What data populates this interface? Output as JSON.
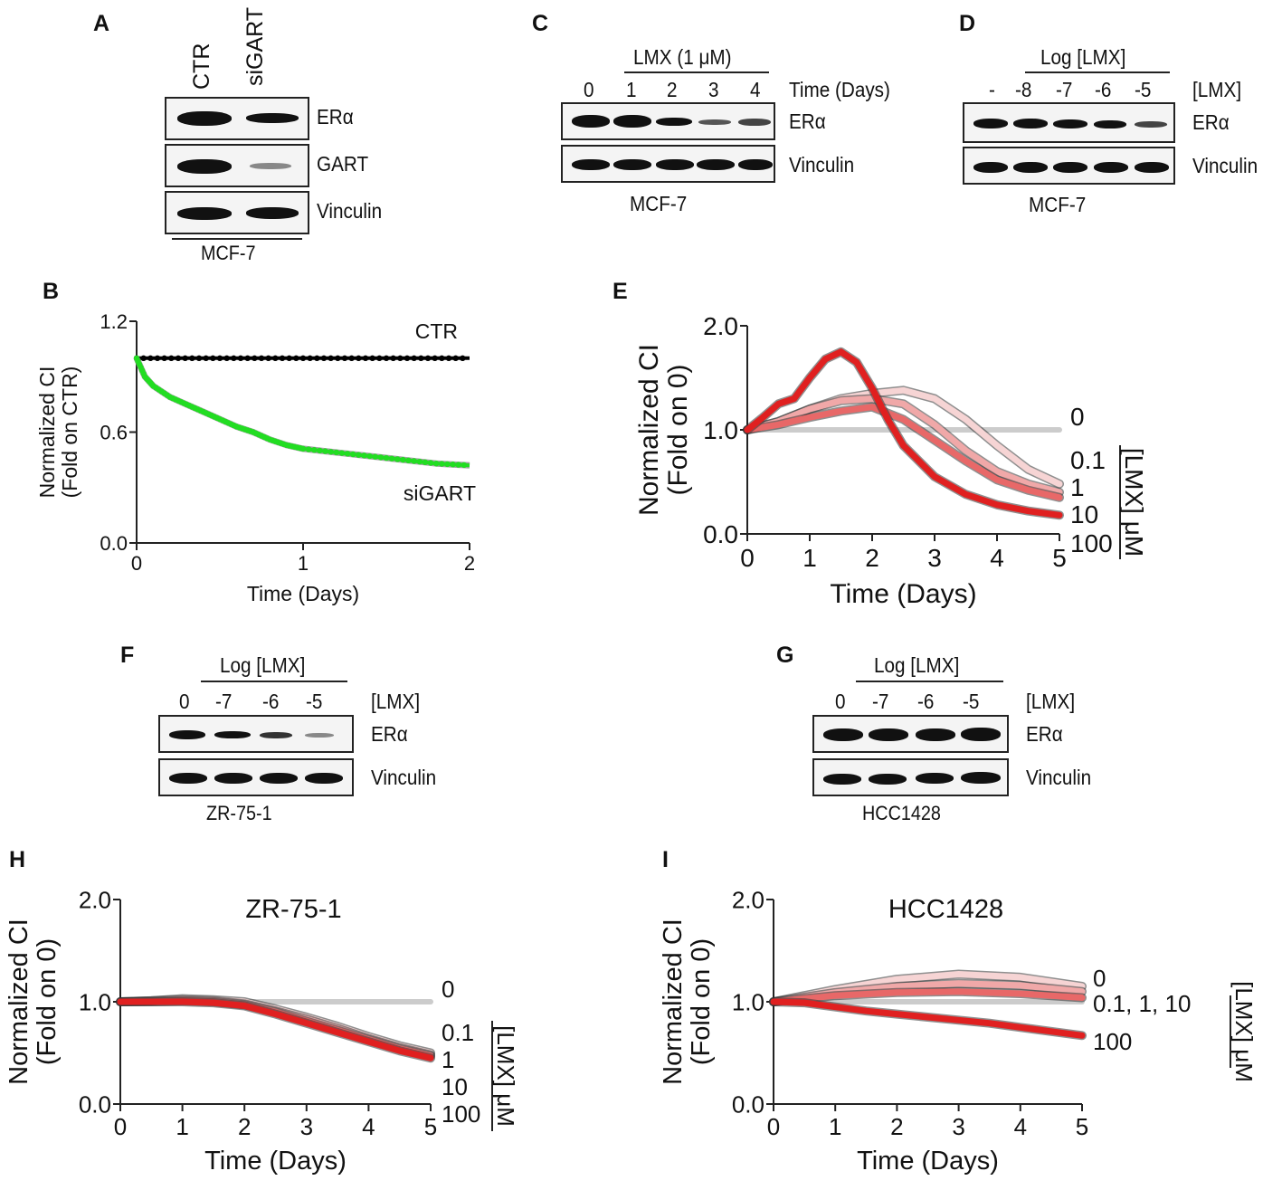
{
  "panels": {
    "A": {
      "label": "A",
      "lanes": [
        "CTR",
        "siGART"
      ],
      "rows": [
        "ERα",
        "GART",
        "Vinculin"
      ],
      "cell": "MCF-7"
    },
    "B": {
      "label": "B"
    },
    "C": {
      "label": "C",
      "treatment": "LMX (1 μM)",
      "lanes": [
        "0",
        "1",
        "2",
        "3",
        "4"
      ],
      "axis": "Time (Days)",
      "rows": [
        "ERα",
        "Vinculin"
      ],
      "cell": "MCF-7"
    },
    "D": {
      "label": "D",
      "treatment": "Log [LMX]",
      "lanes": [
        "-",
        "-8",
        "-7",
        "-6",
        "-5"
      ],
      "axis": "[LMX]",
      "rows": [
        "ERα",
        "Vinculin"
      ],
      "cell": "MCF-7"
    },
    "E": {
      "label": "E"
    },
    "F": {
      "label": "F",
      "treatment": "Log [LMX]",
      "lanes": [
        "0",
        "-7",
        "-6",
        "-5"
      ],
      "axis": "[LMX]",
      "rows": [
        "ERα",
        "Vinculin"
      ],
      "cell": "ZR-75-1"
    },
    "G": {
      "label": "G",
      "treatment": "Log [LMX]",
      "lanes": [
        "0",
        "-7",
        "-6",
        "-5"
      ],
      "axis": "[LMX]",
      "rows": [
        "ERα",
        "Vinculin"
      ],
      "cell": "HCC1428"
    },
    "H": {
      "label": "H"
    },
    "I": {
      "label": "I"
    }
  },
  "chart_data": [
    {
      "id": "B",
      "type": "line",
      "title": "",
      "xlabel": "Time (Days)",
      "ylabel_line1": "Normalized CI",
      "ylabel_line2": "(Fold on CTR)",
      "xlim": [
        0,
        2
      ],
      "ylim": [
        0,
        1.2
      ],
      "xticks": [
        "0",
        "1",
        "2"
      ],
      "yticks": [
        "0.0",
        "0.6",
        "1.2"
      ],
      "series": [
        {
          "name": "CTR",
          "color": "#000000",
          "x": [
            0,
            0.25,
            0.5,
            0.75,
            1,
            1.25,
            1.5,
            1.75,
            2
          ],
          "y": [
            1.0,
            1.0,
            1.0,
            1.0,
            1.0,
            1.0,
            1.0,
            1.0,
            1.0
          ]
        },
        {
          "name": "siGART",
          "color": "#22dd22",
          "x": [
            0,
            0.05,
            0.1,
            0.2,
            0.3,
            0.4,
            0.5,
            0.6,
            0.7,
            0.8,
            0.9,
            1.0,
            1.2,
            1.4,
            1.6,
            1.8,
            2.0
          ],
          "y": [
            1.0,
            0.9,
            0.85,
            0.79,
            0.75,
            0.71,
            0.67,
            0.63,
            0.6,
            0.56,
            0.53,
            0.51,
            0.49,
            0.47,
            0.45,
            0.43,
            0.42
          ]
        }
      ],
      "annotations": [
        "CTR",
        "siGART"
      ]
    },
    {
      "id": "E",
      "type": "line",
      "title": "",
      "xlabel": "Time (Days)",
      "ylabel_line1": "Normalized CI",
      "ylabel_line2": "(Fold on 0)",
      "xlim": [
        0,
        5
      ],
      "ylim": [
        0,
        2.0
      ],
      "xticks": [
        "0",
        "1",
        "2",
        "3",
        "4",
        "5"
      ],
      "yticks": [
        "0.0",
        "1.0",
        "2.0"
      ],
      "legend_title": "[LMX] μM",
      "legend": [
        "0",
        "0.1",
        "1",
        "10",
        "100"
      ],
      "series": [
        {
          "name": "0",
          "color": "#cccccc",
          "x": [
            0,
            1,
            2,
            3,
            4,
            5
          ],
          "y": [
            1.0,
            1.0,
            1.0,
            1.0,
            1.0,
            1.0
          ]
        },
        {
          "name": "0.1",
          "color": "#f6d4d4",
          "x": [
            0,
            0.5,
            1,
            1.5,
            2,
            2.5,
            3,
            3.5,
            4,
            4.5,
            5
          ],
          "y": [
            1.0,
            1.08,
            1.2,
            1.3,
            1.35,
            1.38,
            1.3,
            1.1,
            0.85,
            0.62,
            0.48
          ]
        },
        {
          "name": "1",
          "color": "#f0a8a8",
          "x": [
            0,
            0.5,
            1,
            1.5,
            2,
            2.5,
            3,
            3.5,
            4,
            4.5,
            5
          ],
          "y": [
            1.0,
            1.08,
            1.2,
            1.28,
            1.3,
            1.25,
            1.05,
            0.8,
            0.6,
            0.48,
            0.4
          ]
        },
        {
          "name": "10",
          "color": "#e86868",
          "x": [
            0,
            0.5,
            1,
            1.5,
            2,
            2.5,
            3,
            3.5,
            4,
            4.5,
            5
          ],
          "y": [
            1.0,
            1.05,
            1.12,
            1.18,
            1.22,
            1.1,
            0.9,
            0.7,
            0.52,
            0.42,
            0.35
          ]
        },
        {
          "name": "100",
          "color": "#e02020",
          "x": [
            0,
            0.25,
            0.5,
            0.75,
            1,
            1.25,
            1.5,
            1.75,
            2,
            2.25,
            2.5,
            3,
            3.5,
            4,
            4.5,
            5
          ],
          "y": [
            1.0,
            1.12,
            1.25,
            1.3,
            1.5,
            1.68,
            1.75,
            1.65,
            1.4,
            1.1,
            0.85,
            0.55,
            0.38,
            0.28,
            0.22,
            0.18
          ]
        }
      ]
    },
    {
      "id": "H",
      "type": "line",
      "title": "ZR-75-1",
      "xlabel": "Time (Days)",
      "ylabel_line1": "Normalized CI",
      "ylabel_line2": "(Fold on 0)",
      "xlim": [
        0,
        5
      ],
      "ylim": [
        0,
        2.0
      ],
      "xticks": [
        "0",
        "1",
        "2",
        "3",
        "4",
        "5"
      ],
      "yticks": [
        "0.0",
        "1.0",
        "2.0"
      ],
      "legend_title": "[LMX] μM",
      "legend": [
        "0",
        "0.1",
        "1",
        "10",
        "100"
      ],
      "series": [
        {
          "name": "0",
          "color": "#cccccc",
          "x": [
            0,
            1,
            2,
            3,
            4,
            5
          ],
          "y": [
            1.0,
            1.0,
            1.0,
            1.0,
            1.0,
            1.0
          ]
        },
        {
          "name": "0.1",
          "color": "#f6d4d4",
          "x": [
            0,
            0.5,
            1,
            1.5,
            2,
            2.5,
            3,
            3.5,
            4,
            4.5,
            5
          ],
          "y": [
            1.0,
            1.01,
            1.03,
            1.02,
            1.0,
            0.93,
            0.85,
            0.76,
            0.66,
            0.57,
            0.5
          ]
        },
        {
          "name": "1",
          "color": "#f0a8a8",
          "x": [
            0,
            0.5,
            1,
            1.5,
            2,
            2.5,
            3,
            3.5,
            4,
            4.5,
            5
          ],
          "y": [
            1.0,
            1.01,
            1.02,
            1.01,
            0.98,
            0.91,
            0.83,
            0.74,
            0.64,
            0.55,
            0.48
          ]
        },
        {
          "name": "10",
          "color": "#e86868",
          "x": [
            0,
            0.5,
            1,
            1.5,
            2,
            2.5,
            3,
            3.5,
            4,
            4.5,
            5
          ],
          "y": [
            1.0,
            1.0,
            1.01,
            1.0,
            0.97,
            0.9,
            0.81,
            0.72,
            0.63,
            0.54,
            0.47
          ]
        },
        {
          "name": "100",
          "color": "#e02020",
          "x": [
            0,
            0.5,
            1,
            1.5,
            2,
            2.5,
            3,
            3.5,
            4,
            4.5,
            5
          ],
          "y": [
            1.0,
            1.0,
            1.0,
            0.99,
            0.96,
            0.88,
            0.79,
            0.7,
            0.61,
            0.52,
            0.45
          ]
        }
      ]
    },
    {
      "id": "I",
      "type": "line",
      "title": "HCC1428",
      "xlabel": "Time (Days)",
      "ylabel_line1": "Normalized CI",
      "ylabel_line2": "(Fold on 0)",
      "xlim": [
        0,
        5
      ],
      "ylim": [
        0,
        2.0
      ],
      "xticks": [
        "0",
        "1",
        "2",
        "3",
        "4",
        "5"
      ],
      "yticks": [
        "0.0",
        "1.0",
        "2.0"
      ],
      "legend_title": "[LMX] μM",
      "legend": [
        "0",
        "0.1, 1, 10",
        "100"
      ],
      "series": [
        {
          "name": "0",
          "color": "#cccccc",
          "x": [
            0,
            1,
            2,
            3,
            4,
            5
          ],
          "y": [
            1.0,
            1.0,
            1.0,
            1.0,
            1.0,
            1.0
          ]
        },
        {
          "name": "0.1",
          "color": "#f6d4d4",
          "x": [
            0,
            1,
            2,
            3,
            4,
            5
          ],
          "y": [
            1.0,
            1.12,
            1.22,
            1.27,
            1.24,
            1.15
          ]
        },
        {
          "name": "1",
          "color": "#f0a8a8",
          "x": [
            0,
            1,
            2,
            3,
            4,
            5
          ],
          "y": [
            1.0,
            1.09,
            1.15,
            1.18,
            1.16,
            1.1
          ]
        },
        {
          "name": "10",
          "color": "#e86868",
          "x": [
            0,
            1,
            2,
            3,
            4,
            5
          ],
          "y": [
            1.0,
            1.06,
            1.09,
            1.1,
            1.08,
            1.04
          ]
        },
        {
          "name": "100",
          "color": "#e02020",
          "x": [
            0,
            0.5,
            1,
            1.5,
            2,
            2.5,
            3,
            3.5,
            4,
            4.5,
            5
          ],
          "y": [
            1.0,
            0.99,
            0.95,
            0.91,
            0.88,
            0.85,
            0.82,
            0.79,
            0.75,
            0.71,
            0.67
          ]
        }
      ]
    }
  ]
}
